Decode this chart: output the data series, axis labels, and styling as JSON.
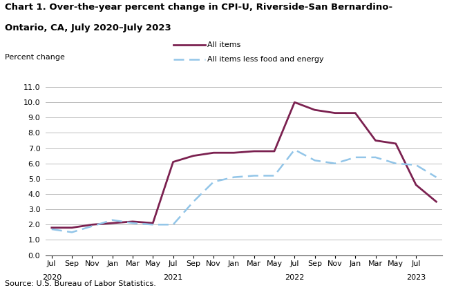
{
  "title_line1": "Chart 1. Over-the-year percent change in CPI-U, Riverside-San Bernardino-",
  "title_line2": "Ontario, CA, July 2020–July 2023",
  "ylabel": "Percent change",
  "source": "Source: U.S. Bureau of Labor Statistics.",
  "xtick_labels": [
    "Jul",
    "Sep",
    "Nov",
    "Jan",
    "Mar",
    "May",
    "Jul",
    "Sep",
    "Nov",
    "Jan",
    "Mar",
    "May",
    "Jul",
    "Sep",
    "Nov",
    "Jan",
    "Mar",
    "May",
    "Jul"
  ],
  "xtick_year_labels": [
    [
      "2020",
      0
    ],
    [
      "2021",
      6
    ],
    [
      "2022",
      12
    ],
    [
      "2023",
      18
    ]
  ],
  "ylim": [
    0.0,
    11.0
  ],
  "yticks": [
    0.0,
    1.0,
    2.0,
    3.0,
    4.0,
    5.0,
    6.0,
    7.0,
    8.0,
    9.0,
    10.0,
    11.0
  ],
  "all_items": [
    1.8,
    1.8,
    2.0,
    2.1,
    2.2,
    2.1,
    6.1,
    6.5,
    6.7,
    6.7,
    6.8,
    6.8,
    10.0,
    9.5,
    9.3,
    9.3,
    7.5,
    7.3,
    4.6,
    3.5
  ],
  "all_items_less": [
    1.7,
    1.5,
    1.9,
    2.3,
    2.1,
    2.0,
    2.0,
    3.5,
    4.8,
    5.1,
    5.2,
    5.2,
    6.9,
    6.2,
    6.0,
    6.4,
    6.4,
    6.0,
    5.9,
    5.1
  ],
  "all_items_x": [
    0,
    1,
    2,
    3,
    4,
    5,
    6,
    7,
    8,
    9,
    10,
    11,
    12,
    13,
    14,
    15,
    16,
    17,
    18,
    19
  ],
  "all_items_less_x": [
    0,
    1,
    2,
    3,
    4,
    5,
    6,
    7,
    8,
    9,
    10,
    11,
    12,
    13,
    14,
    15,
    16,
    17,
    18,
    19
  ],
  "line1_color": "#7B2150",
  "line2_color": "#92C5E8",
  "line1_label": "All items",
  "line2_label": "All items less food and energy",
  "background_color": "#ffffff",
  "grid_color": "#bbbbbb"
}
